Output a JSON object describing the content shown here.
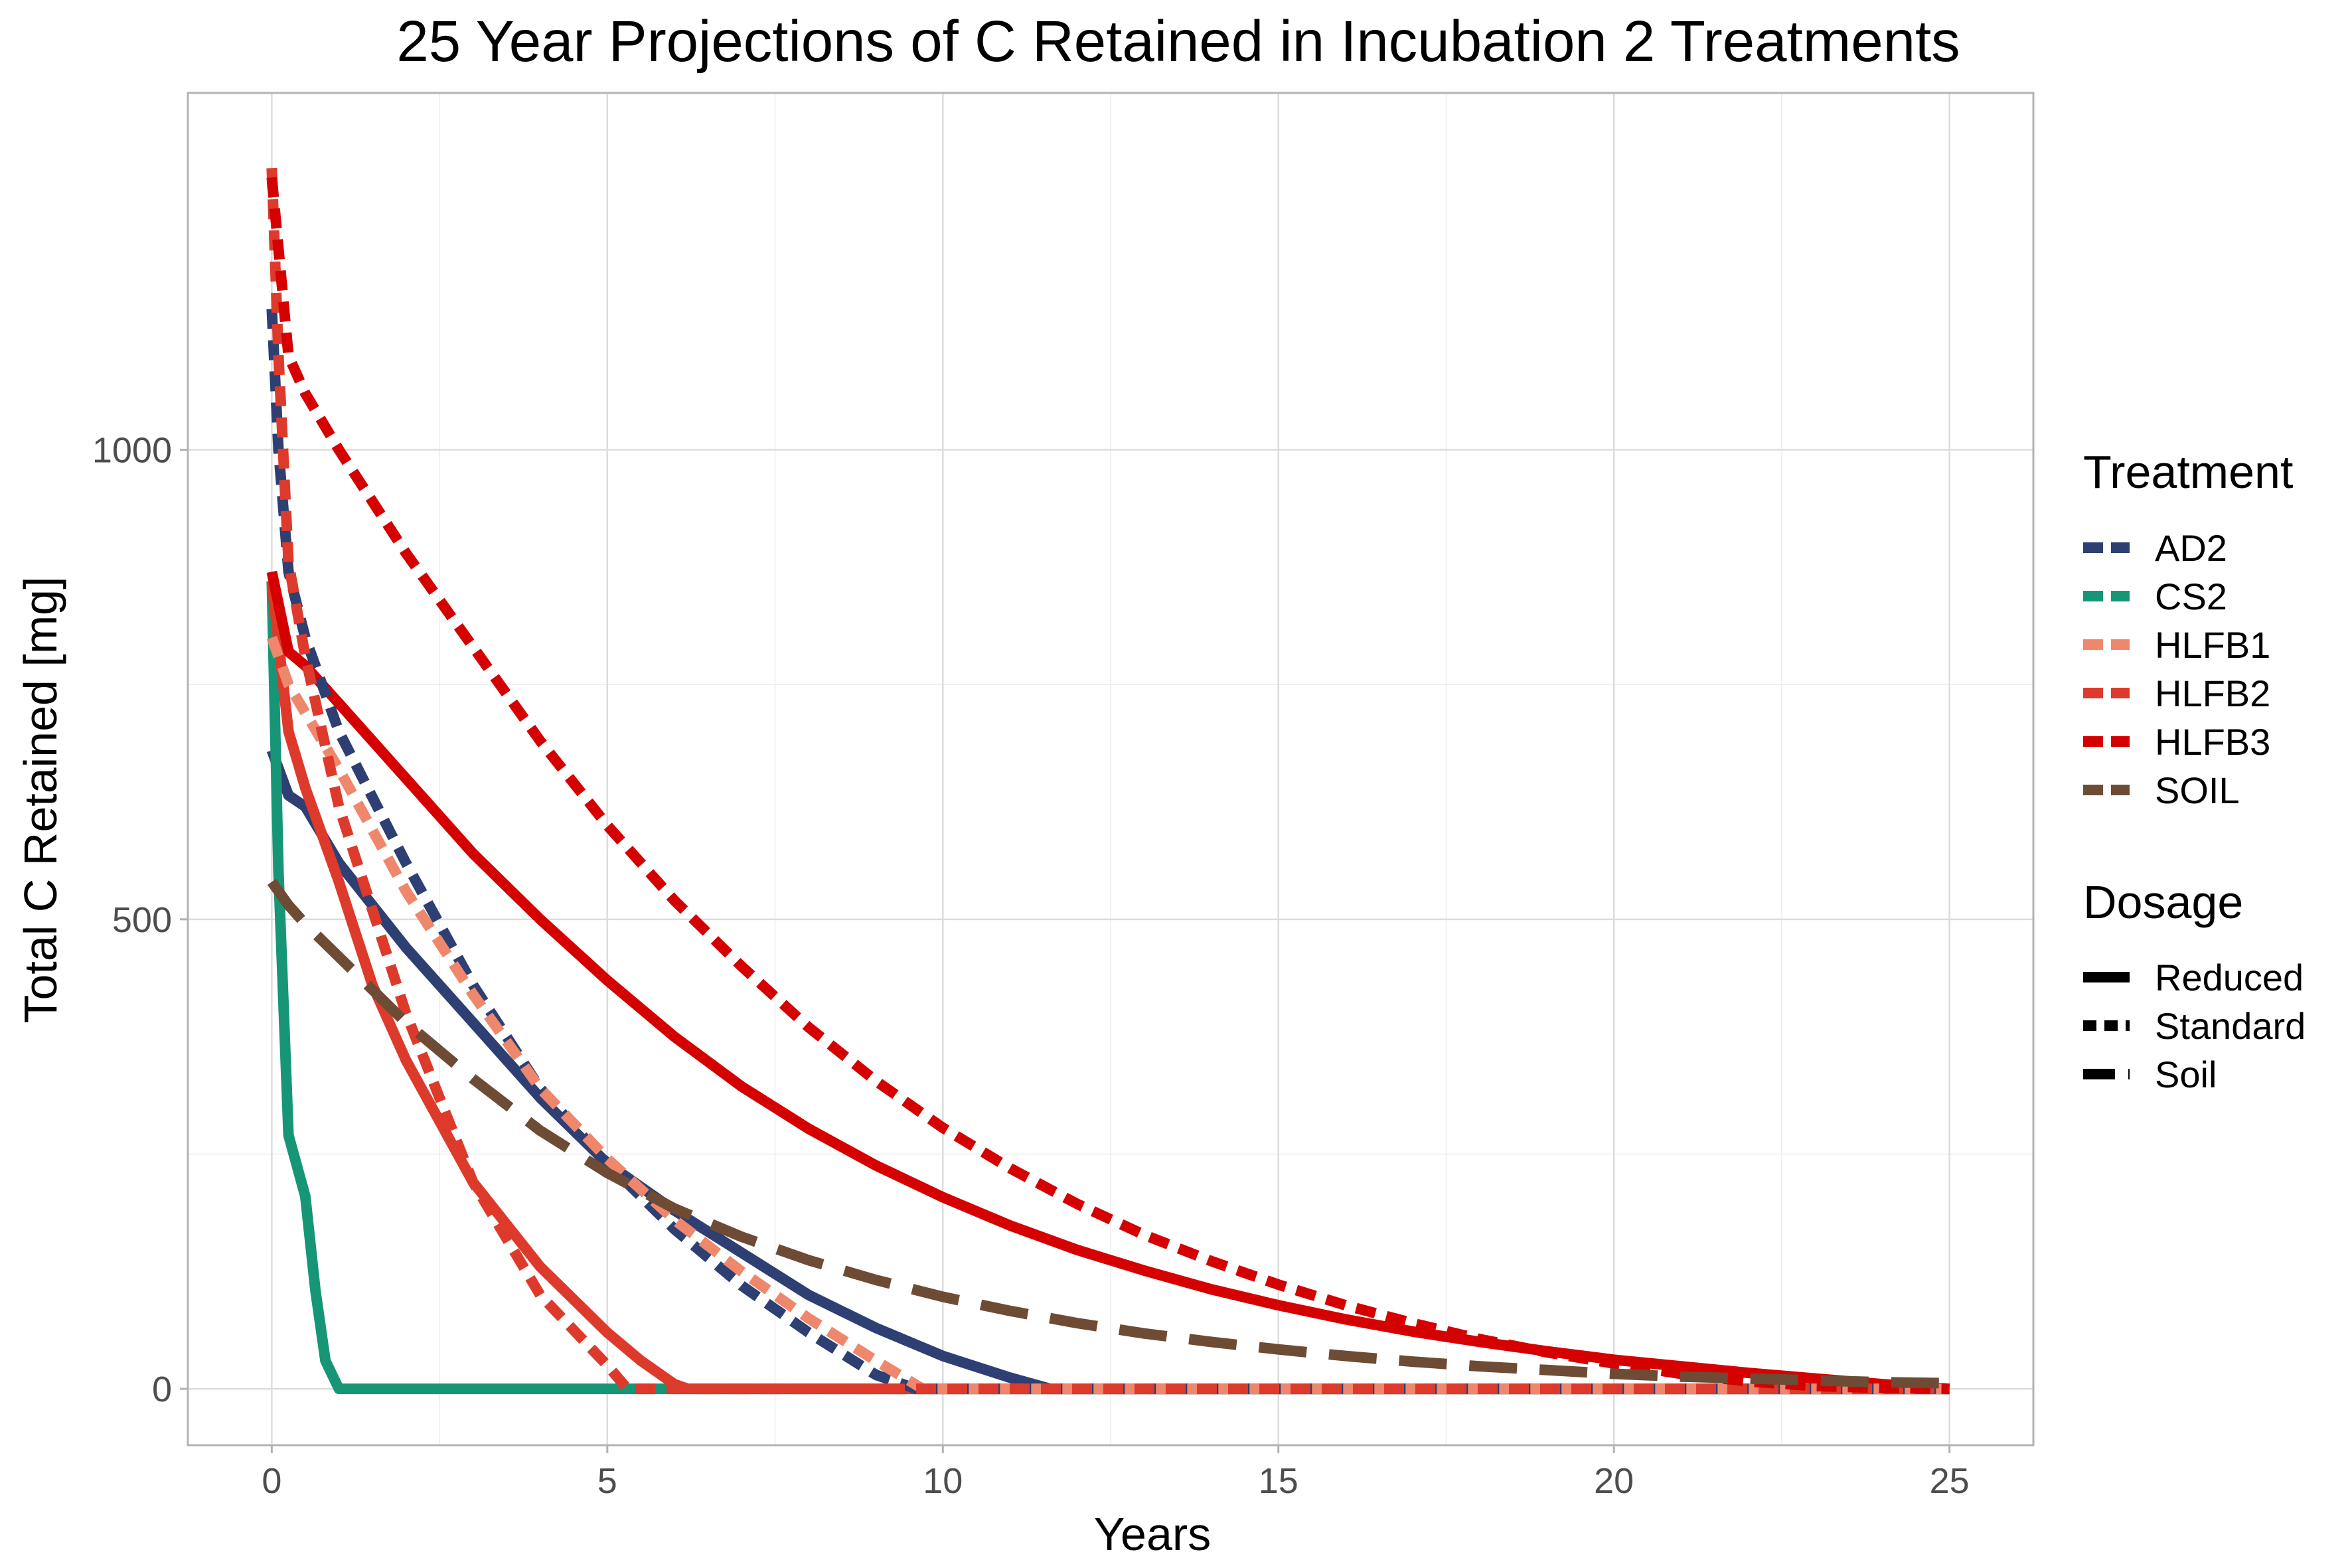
{
  "chart_data": {
    "type": "line",
    "title": "25 Year Projections of C Retained in Incubation 2 Treatments",
    "xlabel": "Years",
    "ylabel": "Total C Retained [mg]",
    "xlim": [
      -1.25,
      26.25
    ],
    "ylim": [
      -60,
      1380
    ],
    "x_ticks": [
      0,
      5,
      10,
      15,
      20,
      25
    ],
    "y_ticks": [
      0,
      500,
      1000
    ],
    "grid": true,
    "legend_position": "right",
    "legends": {
      "treatment": {
        "title": "Treatment",
        "entries": [
          {
            "label": "AD2",
            "color": "#2e3f73"
          },
          {
            "label": "CS2",
            "color": "#169677"
          },
          {
            "label": "HLFB1",
            "color": "#ee876c"
          },
          {
            "label": "HLFB2",
            "color": "#dd3a2c"
          },
          {
            "label": "HLFB3",
            "color": "#d50000"
          },
          {
            "label": "SOIL",
            "color": "#6e4b34"
          }
        ]
      },
      "dosage": {
        "title": "Dosage",
        "entries": [
          {
            "label": "Reduced",
            "dash": "solid"
          },
          {
            "label": "Standard",
            "dash": "dotted"
          },
          {
            "label": "Soil",
            "dash": "dashed"
          }
        ]
      }
    },
    "series": [
      {
        "treatment": "AD2",
        "dosage": "Reduced",
        "color": "#2e3f73",
        "dash": "solid",
        "x": [
          0,
          0.25,
          0.5,
          1,
          2,
          3,
          4,
          5,
          6,
          7,
          8,
          9,
          10,
          11,
          11.6,
          25
        ],
        "y": [
          680,
          632,
          620,
          560,
          470,
          390,
          310,
          240,
          190,
          145,
          100,
          65,
          35,
          12,
          0,
          0
        ]
      },
      {
        "treatment": "AD2",
        "dosage": "Standard",
        "color": "#2e3f73",
        "dash": "dotted",
        "x": [
          0,
          0.1,
          0.25,
          0.5,
          1,
          2,
          3,
          4,
          5,
          6,
          7,
          8,
          9,
          9.6,
          25
        ],
        "y": [
          1150,
          1000,
          870,
          800,
          700,
          560,
          430,
          320,
          240,
          170,
          110,
          60,
          15,
          0,
          0
        ]
      },
      {
        "treatment": "CS2",
        "dosage": "Reduced",
        "color": "#169677",
        "dash": "solid",
        "x": [
          0,
          0.1,
          0.25,
          0.5,
          0.65,
          0.8,
          1,
          25
        ],
        "y": [
          860,
          550,
          270,
          205,
          105,
          30,
          0,
          0
        ]
      },
      {
        "treatment": "HLFB1",
        "dosage": "Standard",
        "color": "#ee876c",
        "dash": "dotted",
        "x": [
          0,
          0.25,
          0.5,
          1,
          2,
          3,
          4,
          5,
          6,
          7,
          8,
          9,
          9.7,
          25
        ],
        "y": [
          800,
          750,
          720,
          660,
          530,
          420,
          320,
          245,
          180,
          125,
          75,
          30,
          0,
          0
        ]
      },
      {
        "treatment": "HLFB2",
        "dosage": "Reduced",
        "color": "#dd3a2c",
        "dash": "solid",
        "x": [
          0,
          0.25,
          0.5,
          1,
          1.5,
          2,
          3,
          4,
          5,
          5.5,
          6,
          6.2,
          25
        ],
        "y": [
          860,
          700,
          640,
          540,
          430,
          350,
          220,
          130,
          60,
          30,
          5,
          0,
          0
        ]
      },
      {
        "treatment": "HLFB2",
        "dosage": "Standard",
        "color": "#dd3a2c",
        "dash": "dotted",
        "x": [
          0,
          0.1,
          0.25,
          0.5,
          1,
          2,
          3,
          4,
          5,
          5.3,
          25
        ],
        "y": [
          1300,
          1100,
          880,
          780,
          620,
          400,
          220,
          100,
          25,
          0,
          0
        ]
      },
      {
        "treatment": "HLFB3",
        "dosage": "Reduced",
        "color": "#d50000",
        "dash": "solid",
        "x": [
          0,
          0.25,
          0.5,
          1,
          2,
          3,
          4,
          5,
          6,
          7,
          8,
          9,
          10,
          11,
          12,
          13,
          14,
          15,
          16,
          17,
          18,
          19,
          20,
          21,
          22,
          23,
          24,
          25
        ],
        "y": [
          870,
          785,
          770,
          730,
          650,
          570,
          500,
          435,
          375,
          322,
          277,
          238,
          204,
          174,
          148,
          126,
          106,
          89,
          74,
          61,
          50,
          40,
          31,
          24,
          17,
          11,
          5,
          0
        ]
      },
      {
        "treatment": "HLFB3",
        "dosage": "Standard",
        "color": "#d50000",
        "dash": "dotted",
        "x": [
          0,
          0.25,
          0.5,
          1,
          2,
          3,
          4,
          5,
          6,
          7,
          8,
          9,
          10,
          11,
          12,
          13,
          14,
          15,
          16,
          17,
          18,
          19,
          20,
          21,
          22,
          23,
          24,
          25
        ],
        "y": [
          1290,
          1100,
          1060,
          1000,
          890,
          790,
          690,
          600,
          520,
          450,
          385,
          328,
          278,
          235,
          197,
          164,
          136,
          111,
          89,
          70,
          53,
          39,
          27,
          16,
          8,
          3,
          1,
          0
        ]
      },
      {
        "treatment": "SOIL",
        "dosage": "Soil",
        "color": "#6e4b34",
        "dash": "dashed",
        "x": [
          0,
          0.25,
          0.5,
          1,
          2,
          3,
          4,
          5,
          6,
          7,
          8,
          9,
          10,
          11,
          12,
          13,
          14,
          15,
          16,
          17,
          18,
          19,
          20,
          21,
          22,
          23,
          24,
          25
        ],
        "y": [
          540,
          515,
          495,
          460,
          390,
          330,
          275,
          230,
          192,
          162,
          137,
          116,
          98,
          83,
          70,
          59,
          50,
          42,
          35,
          29,
          24,
          20,
          16,
          13,
          11,
          9,
          7,
          6
        ]
      }
    ]
  }
}
